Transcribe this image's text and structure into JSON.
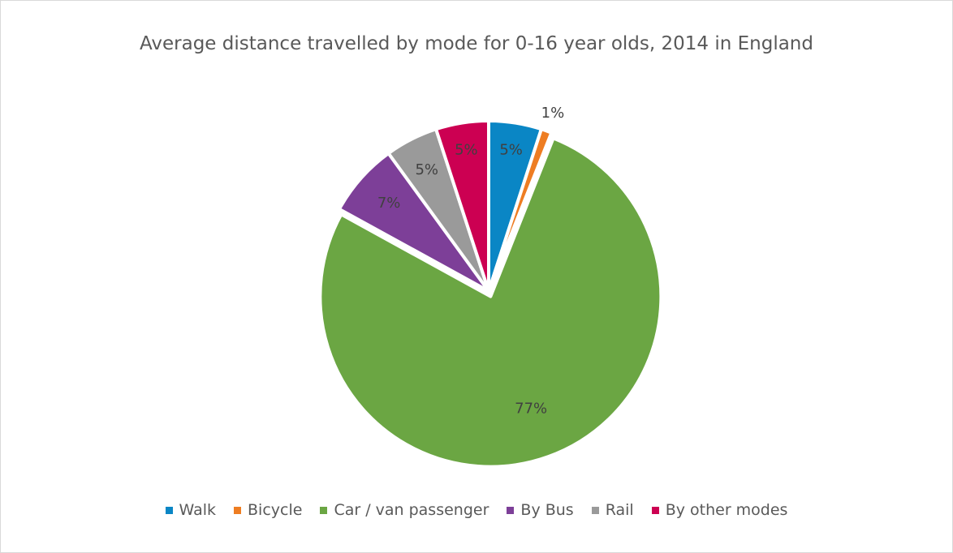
{
  "chart_data": {
    "type": "pie",
    "title": "Average distance travelled by mode for 0-16 year olds, 2014 in England",
    "categories": [
      "Walk",
      "Bicycle",
      "Car / van passenger",
      "By Bus",
      "Rail",
      "By other modes"
    ],
    "values": [
      5,
      1,
      77,
      7,
      5,
      5
    ],
    "data_labels": [
      "5%",
      "1%",
      "77%",
      "7%",
      "5%",
      "5%"
    ],
    "colors": [
      "#0a86c5",
      "#ee7d22",
      "#6ba643",
      "#7d3f98",
      "#9a9a9a",
      "#cc0052"
    ],
    "legend_position": "bottom"
  }
}
